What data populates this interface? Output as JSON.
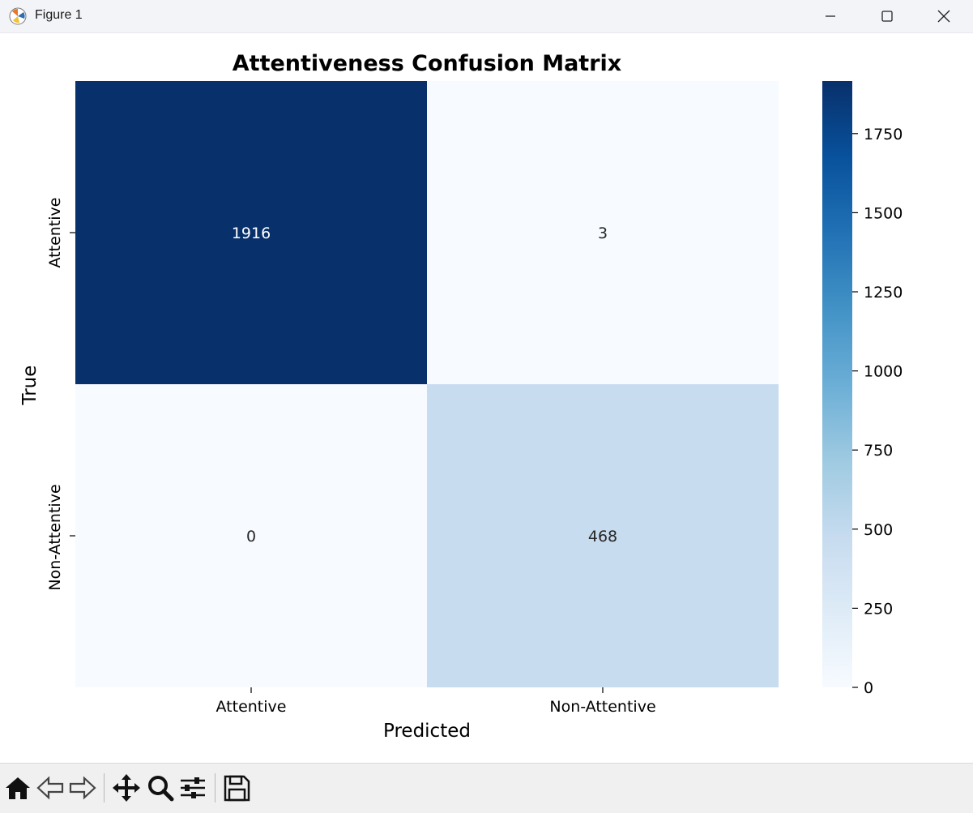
{
  "window": {
    "title": "Figure 1",
    "icon": "matplotlib-icon",
    "controls": [
      "minimize-icon",
      "maximize-icon",
      "close-icon"
    ]
  },
  "toolbar": {
    "buttons": [
      "home-icon",
      "back-icon",
      "forward-icon",
      "pan-icon",
      "zoom-icon",
      "configure-subplots-icon",
      "save-icon"
    ]
  },
  "colors": {
    "cmap_low": "#f7fbff",
    "cmap_high": "#08306b",
    "text_on_dark": "#ffffff",
    "text_on_light": "#262626"
  },
  "chart_data": {
    "type": "heatmap",
    "title": "Attentiveness Confusion Matrix",
    "xlabel": "Predicted",
    "ylabel": "True",
    "x_categories": [
      "Attentive",
      "Non-Attentive"
    ],
    "y_categories": [
      "Attentive",
      "Non-Attentive"
    ],
    "values": [
      [
        1916,
        3
      ],
      [
        0,
        468
      ]
    ],
    "value_labels": [
      [
        "1916",
        "3"
      ],
      [
        "0",
        "468"
      ]
    ],
    "colorbar": {
      "min": 0,
      "max": 1916,
      "ticks": [
        0,
        250,
        500,
        750,
        1000,
        1250,
        1500,
        1750
      ],
      "tick_labels": [
        "0",
        "250",
        "500",
        "750",
        "1000",
        "1250",
        "1500",
        "1750"
      ],
      "colormap": "Blues"
    }
  }
}
